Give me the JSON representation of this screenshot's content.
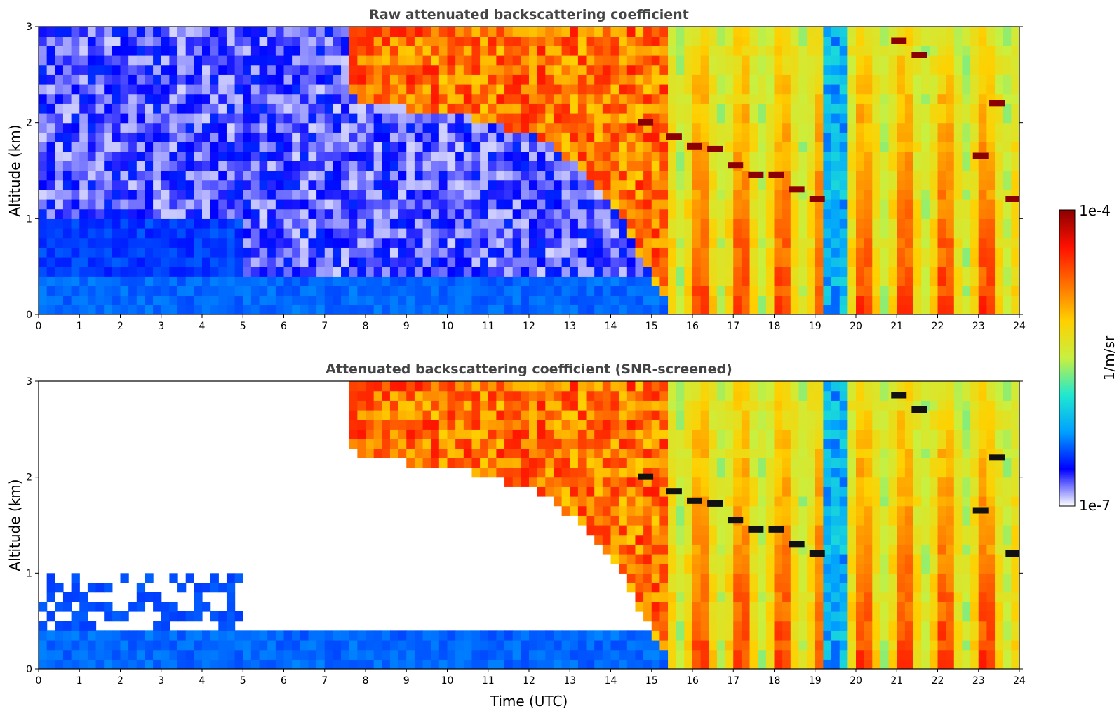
{
  "chart_data": [
    {
      "type": "heatmap",
      "title": "Raw attenuated backscattering coefficient",
      "xlabel": "",
      "ylabel": "Altitude (km)",
      "xlim": [
        0,
        24
      ],
      "ylim": [
        0,
        3
      ],
      "x_ticks": [
        "0",
        "1",
        "2",
        "3",
        "4",
        "5",
        "6",
        "7",
        "8",
        "9",
        "10",
        "11",
        "12",
        "13",
        "14",
        "15",
        "16",
        "17",
        "18",
        "19",
        "20",
        "21",
        "22",
        "23",
        "24"
      ],
      "y_ticks": [
        "0",
        "1",
        "2",
        "3"
      ],
      "screened": false,
      "cloud_layer_top_km": [
        {
          "x": 0,
          "y": 0.0
        },
        {
          "x": 5,
          "y": 3.0
        },
        {
          "x": 8,
          "y": 2.2
        },
        {
          "x": 10,
          "y": 2.1
        },
        {
          "x": 12,
          "y": 1.9
        },
        {
          "x": 13,
          "y": 1.6
        },
        {
          "x": 14,
          "y": 1.2
        },
        {
          "x": 15.5,
          "y": 0.0
        }
      ],
      "strong_echo_layer_km": [
        {
          "x": 14.8,
          "y": 2.0
        },
        {
          "x": 15.5,
          "y": 1.85
        },
        {
          "x": 16.0,
          "y": 1.75
        },
        {
          "x": 16.5,
          "y": 1.72
        },
        {
          "x": 17.0,
          "y": 1.55
        },
        {
          "x": 17.5,
          "y": 1.45
        },
        {
          "x": 18.0,
          "y": 1.45
        },
        {
          "x": 18.5,
          "y": 1.3
        },
        {
          "x": 19.0,
          "y": 1.2
        },
        {
          "x": 21.0,
          "y": 2.85
        },
        {
          "x": 21.5,
          "y": 2.7
        },
        {
          "x": 23.0,
          "y": 1.65
        },
        {
          "x": 23.4,
          "y": 2.2
        },
        {
          "x": 23.8,
          "y": 1.2
        }
      ]
    },
    {
      "type": "heatmap",
      "title": "Attenuated backscattering coefficient (SNR-screened)",
      "xlabel": "Time (UTC)",
      "ylabel": "Altitude (km)",
      "xlim": [
        0,
        24
      ],
      "ylim": [
        0,
        3
      ],
      "x_ticks": [
        "0",
        "1",
        "2",
        "3",
        "4",
        "5",
        "6",
        "7",
        "8",
        "9",
        "10",
        "11",
        "12",
        "13",
        "14",
        "15",
        "16",
        "17",
        "18",
        "19",
        "20",
        "21",
        "22",
        "23",
        "24"
      ],
      "y_ticks": [
        "0",
        "1",
        "2",
        "3"
      ],
      "screened": true
    }
  ],
  "colorbar": {
    "label": "1/m/sr",
    "min_label": "1e-7",
    "max_label": "1e-4",
    "scale": "log",
    "colormap": [
      "#ffffff",
      "#0000ff",
      "#00a0ff",
      "#20e8d0",
      "#c8f040",
      "#ffd000",
      "#ff7000",
      "#ff1000",
      "#8b0000"
    ]
  }
}
